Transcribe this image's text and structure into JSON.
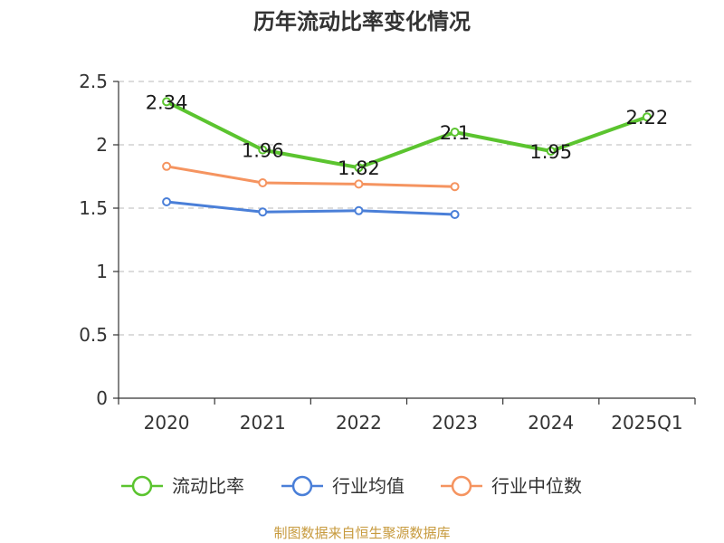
{
  "chart_data": {
    "type": "line",
    "title": "历年流动比率变化情况",
    "categories": [
      "2020",
      "2021",
      "2022",
      "2023",
      "2024",
      "2025Q1"
    ],
    "ylim": [
      0,
      2.5
    ],
    "yticks": [
      "0",
      "0.5",
      "1",
      "1.5",
      "2",
      "2.5"
    ],
    "grid": true,
    "legend_position": "bottom",
    "series": [
      {
        "name": "流动比率",
        "color": "#5bc42f",
        "values": [
          2.34,
          1.96,
          1.82,
          2.1,
          1.95,
          2.22
        ],
        "labels": [
          "2.34",
          "1.96",
          "1.82",
          "2.1",
          "1.95",
          "2.22"
        ],
        "show_labels": true
      },
      {
        "name": "行业均值",
        "color": "#4a7fd8",
        "values": [
          1.55,
          1.47,
          1.48,
          1.45,
          null,
          null
        ],
        "show_labels": false
      },
      {
        "name": "行业中位数",
        "color": "#f59460",
        "values": [
          1.83,
          1.7,
          1.69,
          1.67,
          null,
          null
        ],
        "show_labels": false
      }
    ]
  },
  "source_note": "制图数据来自恒生聚源数据库"
}
